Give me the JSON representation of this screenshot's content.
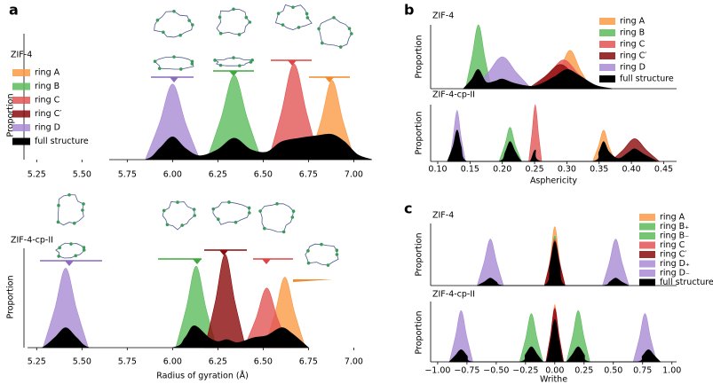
{
  "chart_data": [
    {
      "type": "area",
      "panel": "a",
      "title": "ZIF-4",
      "ylabel": "Proportion",
      "legend": "upper left",
      "xlim": [
        5.18,
        7.15
      ],
      "ylim": [
        0,
        1
      ],
      "xticks": [
        5.25,
        {
          "value": 5.5,
          "label": "5.50"
        },
        5.75,
        {
          "value": 6,
          "label": "6.00"
        },
        6.25,
        {
          "value": 6.5,
          "label": "6.50"
        },
        6.75,
        {
          "value": 7,
          "label": "7.00"
        }
      ],
      "series": [
        {
          "name": "ring A",
          "color": "#fb9a46",
          "x": [
            6.755,
            6.82,
            6.88,
            6.94,
            7.005
          ],
          "values": [
            0,
            0.31,
            0.63,
            0.31,
            0
          ]
        },
        {
          "name": "ring B",
          "color": "#5dbb5d",
          "x": [
            6.19,
            6.268,
            6.34,
            6.412,
            6.49
          ],
          "values": [
            0,
            0.33,
            0.67,
            0.33,
            0
          ]
        },
        {
          "name": "ring C",
          "color": "#e25555",
          "x": [
            6.53,
            6.6,
            6.67,
            6.74,
            6.81
          ],
          "values": [
            0,
            0.37,
            0.76,
            0.37,
            0
          ]
        },
        {
          "name": "ring C′",
          "color": "#8b0a0a",
          "x": [],
          "values": []
        },
        {
          "name": "ring D",
          "color": "#a98bd4",
          "x": [
            5.85,
            5.928,
            6.0,
            6.072,
            6.15
          ],
          "values": [
            0,
            0.29,
            0.6,
            0.29,
            0
          ]
        },
        {
          "name": "full structure",
          "color": "#000000",
          "x": [
            5.65,
            5.85,
            5.93,
            6.0,
            6.07,
            6.15,
            6.25,
            6.34,
            6.43,
            6.52,
            6.6,
            6.7,
            6.8,
            6.88,
            6.95,
            7.02,
            7.1
          ],
          "values": [
            0,
            0,
            0.09,
            0.18,
            0.09,
            0.03,
            0.08,
            0.17,
            0.08,
            0.06,
            0.14,
            0.17,
            0.19,
            0.2,
            0.14,
            0.04,
            0
          ]
        }
      ]
    },
    {
      "type": "area",
      "title": "ZIF-4-cp-II",
      "ylabel": "Proportion",
      "xlabel": "Radius of gyration (Å)",
      "xlim": [
        5.18,
        7.15
      ],
      "ylim": [
        0,
        1
      ],
      "xticks": [
        5.25,
        {
          "value": 5.5,
          "label": "5.50"
        },
        5.75,
        {
          "value": 6,
          "label": "6.00"
        },
        6.25,
        {
          "value": 6.5,
          "label": "6.50"
        },
        6.75,
        {
          "value": 7,
          "label": "7.00"
        }
      ],
      "series": [
        {
          "name": "ring A",
          "color": "#fb9a46",
          "x": [
            6.508,
            6.566,
            6.62,
            6.674,
            6.733
          ],
          "values": [
            0,
            0.35,
            0.71,
            0.35,
            0
          ]
        },
        {
          "name": "ring B",
          "color": "#5dbb5d",
          "x": [
            6.018,
            6.076,
            6.13,
            6.184,
            6.243
          ],
          "values": [
            0,
            0.4,
            0.82,
            0.4,
            0
          ]
        },
        {
          "name": "ring C",
          "color": "#e25555",
          "x": [
            6.395,
            6.46,
            6.52,
            6.58,
            6.645
          ],
          "values": [
            0,
            0.29,
            0.6,
            0.29,
            0
          ]
        },
        {
          "name": "ring C′",
          "color": "#8b0a0a",
          "x": [
            6.178,
            6.236,
            6.29,
            6.344,
            6.403
          ],
          "values": [
            0,
            0.46,
            0.94,
            0.46,
            0
          ]
        },
        {
          "name": "ring D",
          "color": "#a98bd4",
          "x": [
            5.285,
            5.35,
            5.41,
            5.47,
            5.535
          ],
          "values": [
            0,
            0.39,
            0.8,
            0.39,
            0
          ]
        },
        {
          "name": "full structure",
          "color": "#000000",
          "x": [
            5.2,
            5.28,
            5.35,
            5.41,
            5.47,
            5.54,
            5.7,
            6.0,
            6.07,
            6.12,
            6.2,
            6.25,
            6.3,
            6.36,
            6.45,
            6.52,
            6.6,
            6.66,
            6.75
          ],
          "values": [
            0,
            0,
            0.1,
            0.2,
            0.1,
            0,
            0,
            0,
            0.1,
            0.22,
            0.1,
            0.06,
            0.08,
            0.05,
            0.1,
            0.12,
            0.2,
            0.14,
            0
          ]
        }
      ]
    },
    {
      "type": "area",
      "panel": "b",
      "title": "ZIF-4",
      "ylabel": "Proportion",
      "legend": "upper right",
      "xlim": [
        0.089,
        0.47
      ],
      "ylim": [
        0,
        1
      ],
      "series": [
        {
          "name": "ring A",
          "color": "#fb9a46",
          "x": [
            0.273,
            0.289,
            0.305,
            0.321,
            0.338
          ],
          "values": [
            0,
            0.29,
            0.6,
            0.29,
            0
          ]
        },
        {
          "name": "ring B",
          "color": "#5dbb5d",
          "x": [
            0.143,
            0.153,
            0.163,
            0.173,
            0.183
          ],
          "values": [
            0,
            0.49,
            1.0,
            0.49,
            0
          ]
        },
        {
          "name": "ring C",
          "color": "#e25555",
          "x": [
            0.245,
            0.271,
            0.295,
            0.319,
            0.345
          ],
          "values": [
            0,
            0.22,
            0.45,
            0.22,
            0
          ]
        },
        {
          "name": "ring C′",
          "color": "#8b0a0a",
          "x": [
            0.24,
            0.266,
            0.29,
            0.314,
            0.34
          ],
          "values": [
            0,
            0.19,
            0.38,
            0.19,
            0
          ]
        },
        {
          "name": "ring D",
          "color": "#a98bd4",
          "x": [
            0.155,
            0.178,
            0.2,
            0.222,
            0.245
          ],
          "values": [
            0,
            0.25,
            0.5,
            0.25,
            0
          ]
        },
        {
          "name": "full structure",
          "color": "#000000",
          "x": [
            0.14,
            0.153,
            0.163,
            0.175,
            0.19,
            0.2,
            0.22,
            0.25,
            0.28,
            0.3,
            0.32,
            0.345,
            0.37
          ],
          "values": [
            0,
            0.15,
            0.3,
            0.1,
            0.12,
            0.15,
            0.08,
            0.04,
            0.18,
            0.3,
            0.2,
            0.05,
            0
          ]
        }
      ]
    },
    {
      "type": "area",
      "title": "ZIF-4-cp-II",
      "ylabel": "Proportion",
      "xlabel": "Asphericity",
      "xlim": [
        0.089,
        0.47
      ],
      "ylim": [
        0,
        1
      ],
      "xticks": [
        {
          "value": 0.1,
          "label": "0.10"
        },
        0.15,
        {
          "value": 0.2,
          "label": "0.20"
        },
        0.25,
        {
          "value": 0.3,
          "label": "0.30"
        },
        0.35,
        {
          "value": 0.4,
          "label": "0.40"
        },
        0.45
      ],
      "series": [
        {
          "name": "ring A",
          "color": "#fb9a46",
          "x": [
            0.34,
            0.349,
            0.357,
            0.365,
            0.375
          ],
          "values": [
            0,
            0.27,
            0.55,
            0.27,
            0
          ]
        },
        {
          "name": "ring B",
          "color": "#5dbb5d",
          "x": [
            0.195,
            0.204,
            0.212,
            0.22,
            0.23
          ],
          "values": [
            0,
            0.29,
            0.6,
            0.29,
            0
          ]
        },
        {
          "name": "ring C",
          "color": "#e25555",
          "x": [
            0.241,
            0.246,
            0.251,
            0.256,
            0.261
          ],
          "values": [
            0,
            0.49,
            1.0,
            0.49,
            0
          ]
        },
        {
          "name": "ring C′",
          "color": "#8b0a0a",
          "x": [
            0.368,
            0.387,
            0.405,
            0.423,
            0.443
          ],
          "values": [
            0,
            0.2,
            0.4,
            0.2,
            0
          ]
        },
        {
          "name": "ring D",
          "color": "#a98bd4",
          "x": [
            0.118,
            0.124,
            0.13,
            0.136,
            0.143
          ],
          "values": [
            0,
            0.44,
            0.9,
            0.44,
            0
          ]
        },
        {
          "name": "full structure",
          "color": "#000000",
          "x": [
            0.115,
            0.124,
            0.13,
            0.136,
            0.145,
            0.195,
            0.205,
            0.212,
            0.22,
            0.23,
            0.243,
            0.251,
            0.26,
            0.34,
            0.35,
            0.357,
            0.365,
            0.38,
            0.395,
            0.405,
            0.42,
            0.44
          ],
          "values": [
            0,
            0.27,
            0.55,
            0.27,
            0,
            0,
            0.17,
            0.35,
            0.17,
            0,
            0,
            0.2,
            0,
            0,
            0.17,
            0.35,
            0.17,
            0.05,
            0.15,
            0.22,
            0.12,
            0
          ]
        }
      ]
    },
    {
      "type": "area",
      "panel": "c",
      "title": "ZIF-4",
      "ylabel": "Proportion",
      "legend": "upper right",
      "xlim": [
        -1.06,
        1.04
      ],
      "ylim": [
        0,
        1
      ],
      "series": [
        {
          "name": "ring A",
          "color": "#fb9a46",
          "x": [
            -0.075,
            -0.036,
            0,
            0.036,
            0.075
          ],
          "values": [
            0,
            0.47,
            0.95,
            0.47,
            0
          ]
        },
        {
          "name": "ring B₊",
          "color": "#5dbb5d",
          "x": [
            -0.075,
            -0.036,
            0,
            0.036,
            0.075
          ],
          "values": [
            0,
            0.39,
            0.8,
            0.39,
            0
          ]
        },
        {
          "name": "ring B₋",
          "color": "#5dbb5d",
          "x": [
            -0.075,
            -0.036,
            0,
            0.036,
            0.075
          ],
          "values": [
            0,
            0.38,
            0.78,
            0.38,
            0
          ]
        },
        {
          "name": "ring C",
          "color": "#e25555",
          "x": [
            -0.088,
            -0.042,
            0,
            0.042,
            0.088
          ],
          "values": [
            0,
            0.37,
            0.75,
            0.37,
            0
          ]
        },
        {
          "name": "ring C′",
          "color": "#8b0a0a",
          "x": [
            -0.088,
            -0.042,
            0,
            0.042,
            0.088
          ],
          "values": [
            0,
            0.35,
            0.72,
            0.35,
            0
          ]
        },
        {
          "name": "ring D₊",
          "color": "#a98bd4",
          "x": [
            0.408,
            0.466,
            0.52,
            0.574,
            0.633
          ],
          "values": [
            0,
            0.37,
            0.75,
            0.37,
            0
          ]
        },
        {
          "name": "ring D₋",
          "color": "#a98bd4",
          "x": [
            -0.663,
            -0.604,
            -0.55,
            -0.496,
            -0.438
          ],
          "values": [
            0,
            0.37,
            0.75,
            0.37,
            0
          ]
        },
        {
          "name": "full structure",
          "color": "#000000",
          "x": [
            -0.66,
            -0.6,
            -0.55,
            -0.5,
            -0.44,
            -0.09,
            -0.04,
            0,
            0.04,
            0.09,
            0.41,
            0.47,
            0.52,
            0.57,
            0.63
          ],
          "values": [
            0,
            0.06,
            0.12,
            0.06,
            0,
            0,
            0.34,
            0.7,
            0.34,
            0,
            0,
            0.06,
            0.12,
            0.06,
            0
          ]
        }
      ]
    },
    {
      "type": "area",
      "title": "ZIF-4-cp-II",
      "ylabel": "Proportion",
      "xlabel": "Writhe",
      "xlim": [
        -1.06,
        1.04
      ],
      "ylim": [
        0,
        1
      ],
      "xticks": [
        {
          "value": -1,
          "label": "−1.00"
        },
        {
          "value": -0.75,
          "label": "−0.75"
        },
        {
          "value": -0.5,
          "label": "−0.50"
        },
        {
          "value": -0.25,
          "label": "−0.25"
        },
        {
          "value": 0,
          "label": "0.00"
        },
        0.25,
        {
          "value": 0.5,
          "label": "0.50"
        },
        0.75,
        {
          "value": 1,
          "label": "1.00"
        }
      ],
      "series": [
        {
          "name": "ring A",
          "color": "#fb9a46",
          "x": [
            -0.063,
            -0.03,
            0,
            0.03,
            0.063
          ],
          "values": [
            0,
            0.47,
            0.95,
            0.47,
            0
          ]
        },
        {
          "name": "ring B₊",
          "color": "#5dbb5d",
          "x": [
            0.1,
            0.152,
            0.2,
            0.248,
            0.3
          ],
          "values": [
            0,
            0.42,
            0.85,
            0.42,
            0
          ]
        },
        {
          "name": "ring B₋",
          "color": "#5dbb5d",
          "x": [
            -0.3,
            -0.248,
            -0.2,
            -0.152,
            -0.1
          ],
          "values": [
            0,
            0.39,
            0.8,
            0.39,
            0
          ]
        },
        {
          "name": "ring C",
          "color": "#e25555",
          "x": [
            -0.075,
            -0.036,
            0,
            0.036,
            0.075
          ],
          "values": [
            0,
            0.44,
            0.9,
            0.44,
            0
          ]
        },
        {
          "name": "ring C′",
          "color": "#8b0a0a",
          "x": [
            -0.075,
            -0.036,
            0,
            0.036,
            0.075
          ],
          "values": [
            0,
            0.43,
            0.88,
            0.43,
            0
          ]
        },
        {
          "name": "ring D₊",
          "color": "#a98bd4",
          "x": [
            0.67,
            0.722,
            0.77,
            0.818,
            0.87
          ],
          "values": [
            0,
            0.39,
            0.8,
            0.39,
            0
          ]
        },
        {
          "name": "ring D₋",
          "color": "#a98bd4",
          "x": [
            -0.9,
            -0.848,
            -0.8,
            -0.752,
            -0.7
          ],
          "values": [
            0,
            0.42,
            0.85,
            0.42,
            0
          ]
        },
        {
          "name": "full structure",
          "color": "#000000",
          "x": [
            -0.9,
            -0.85,
            -0.8,
            -0.75,
            -0.7,
            -0.3,
            -0.25,
            -0.2,
            -0.15,
            -0.1,
            -0.07,
            -0.035,
            0,
            0.035,
            0.07,
            0.1,
            0.15,
            0.2,
            0.25,
            0.3,
            0.7,
            0.75,
            0.8,
            0.85,
            0.9
          ],
          "values": [
            0,
            0.1,
            0.2,
            0.1,
            0,
            0,
            0.12,
            0.25,
            0.12,
            0,
            0,
            0.34,
            0.7,
            0.34,
            0,
            0,
            0.12,
            0.25,
            0.12,
            0,
            0,
            0.1,
            0.2,
            0.1,
            0
          ]
        }
      ]
    }
  ]
}
